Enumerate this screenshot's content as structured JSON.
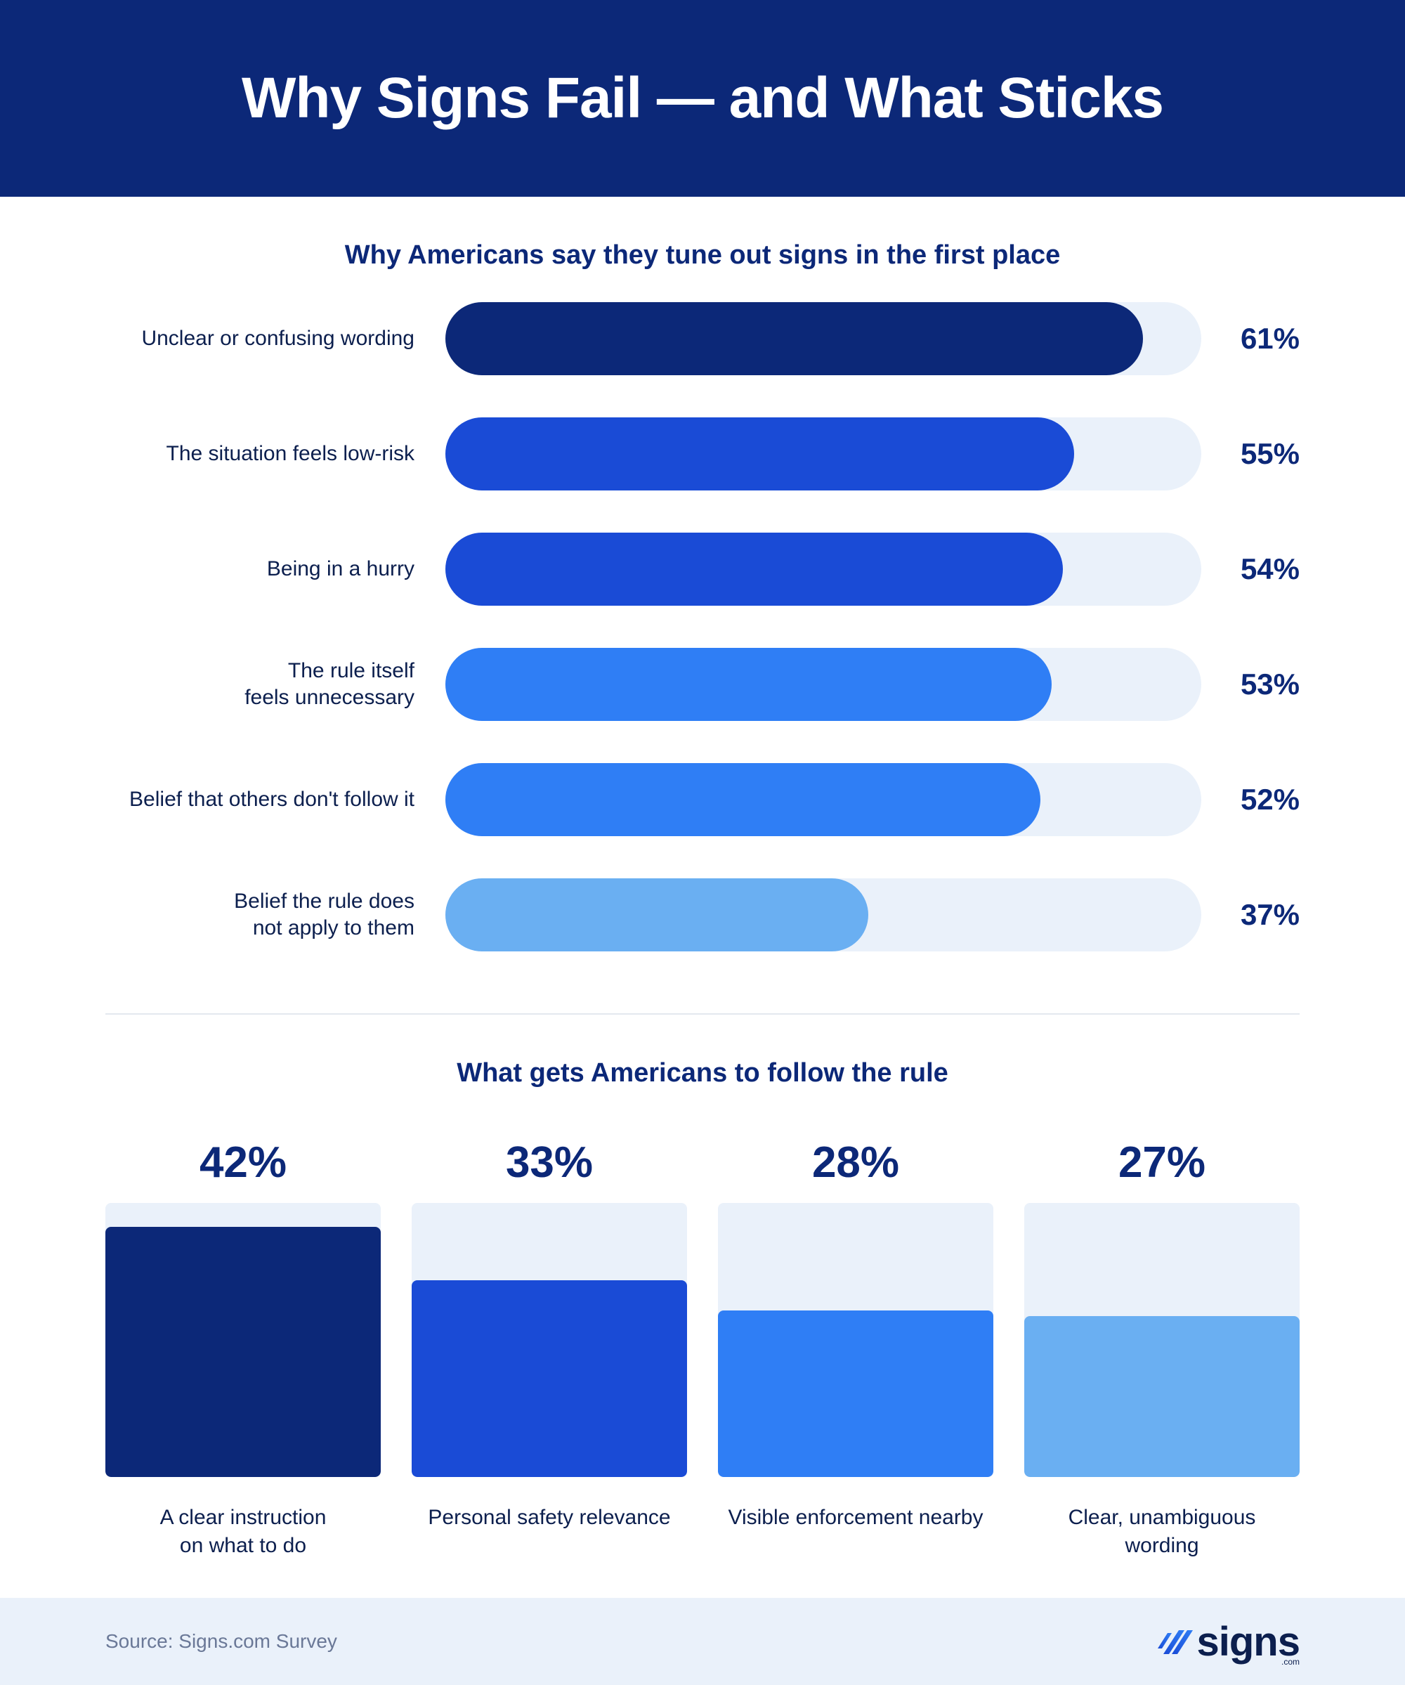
{
  "header": {
    "title": "Why Signs Fail — and What Sticks"
  },
  "colors": {
    "navy": "#0c2878",
    "blue": "#1a4bd6",
    "mid_blue": "#2f7ef5",
    "light_blue": "#6aaff2",
    "track": "#eaf1fa"
  },
  "chart_data": [
    {
      "type": "bar",
      "orientation": "horizontal",
      "title": "Why Americans say they tune out signs in the first place",
      "xlim": [
        0,
        100
      ],
      "categories": [
        "Unclear or confusing wording",
        "The situation feels low-risk",
        "Being in a hurry",
        "The rule itself feels unnecessary",
        "Belief that others don't follow it",
        "Belief the rule does not apply to them"
      ],
      "label_lines": [
        [
          "Unclear or confusing wording"
        ],
        [
          "The situation feels low-risk"
        ],
        [
          "Being in a hurry"
        ],
        [
          "The rule itself",
          "feels unnecessary"
        ],
        [
          "Belief that others don't follow it"
        ],
        [
          "Belief the rule does",
          "not apply to them"
        ]
      ],
      "values": [
        61,
        55,
        54,
        53,
        52,
        37
      ],
      "value_labels": [
        "61%",
        "55%",
        "54%",
        "53%",
        "52%",
        "37%"
      ],
      "bar_colors": [
        "#0c2878",
        "#1a4bd6",
        "#1a4bd6",
        "#2f7ef5",
        "#2f7ef5",
        "#6aaff2"
      ]
    },
    {
      "type": "bar",
      "orientation": "vertical",
      "title": "What gets Americans to follow the rule",
      "ylim": [
        0,
        46
      ],
      "categories": [
        "A clear instruction on what to do",
        "Personal safety relevance",
        "Visible enforcement nearby",
        "Clear, unambiguous wording"
      ],
      "label_lines": [
        [
          "A clear instruction",
          "on what to do"
        ],
        [
          "Personal safety relevance"
        ],
        [
          "Visible enforcement nearby"
        ],
        [
          "Clear, unambiguous",
          "wording"
        ]
      ],
      "values": [
        42,
        33,
        28,
        27
      ],
      "value_labels": [
        "42%",
        "33%",
        "28%",
        "27%"
      ],
      "bar_colors": [
        "#0c2878",
        "#1a4bd6",
        "#2f7ef5",
        "#6aaff2"
      ]
    }
  ],
  "footer": {
    "source": "Source: Signs.com Survey",
    "logo": {
      "icon": "signs-logo-icon",
      "text": "signs",
      "suffix": ".com"
    }
  }
}
